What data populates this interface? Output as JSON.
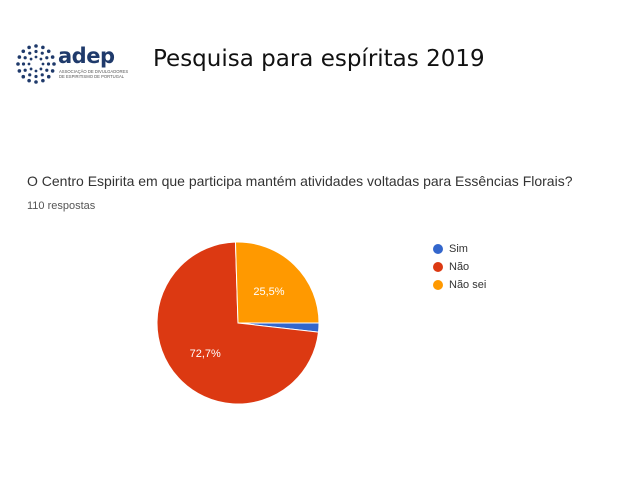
{
  "header": {
    "logo_word": "adep",
    "logo_subtitle": "Associação de Divulgadores de Espiritismo de Portugal",
    "title": "Pesquisa para espíritas  2019"
  },
  "form": {
    "question": "O Centro Espirita em que participa mantém atividades voltadas para Essências Florais?",
    "responses": "110 respostas"
  },
  "colors": {
    "sim": "#3366cc",
    "nao": "#dc3912",
    "nao_sei": "#ff9900",
    "logo": "#1f3a6b"
  },
  "chart_data": {
    "type": "pie",
    "title": "",
    "slices": [
      {
        "label": "Sim",
        "value": 1.8,
        "color": "#3366cc",
        "display": ""
      },
      {
        "label": "Não",
        "value": 72.7,
        "color": "#dc3912",
        "display": "72,7%"
      },
      {
        "label": "Não sei",
        "value": 25.5,
        "color": "#ff9900",
        "display": "25,5%"
      }
    ],
    "legend_position": "right"
  }
}
